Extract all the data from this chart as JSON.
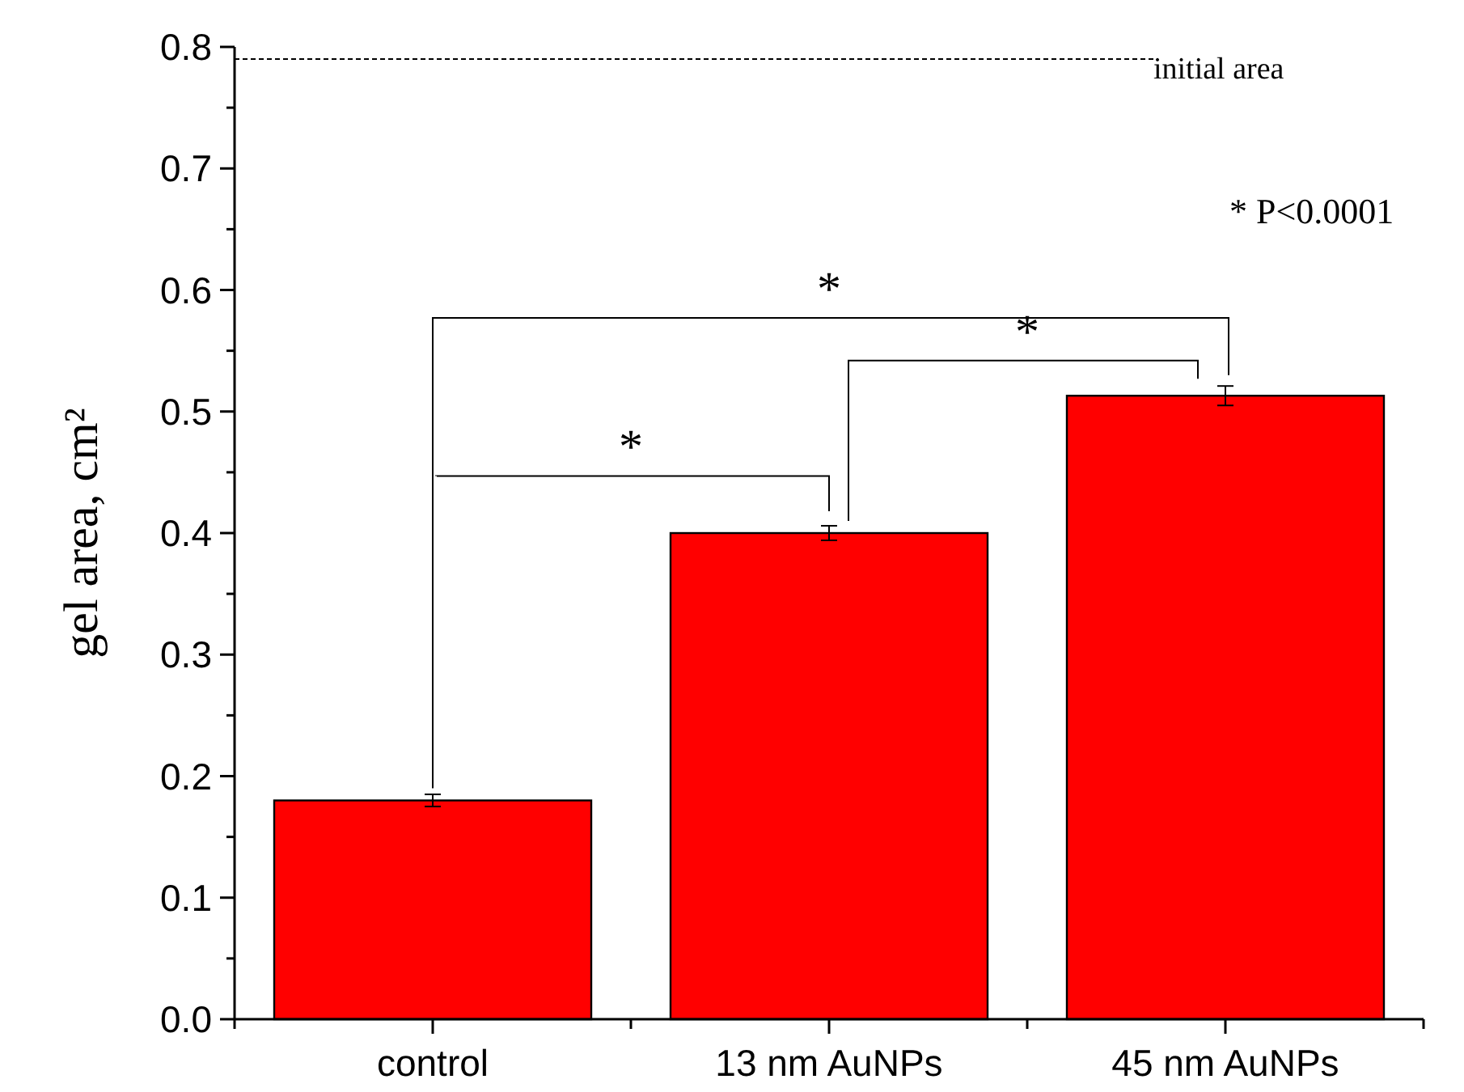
{
  "chart_data": {
    "type": "bar",
    "ylabel": "gel area, cm²",
    "categories": [
      "control",
      "13 nm AuNPs",
      "45 nm AuNPs"
    ],
    "values": [
      0.18,
      0.4,
      0.513
    ],
    "errors": [
      0.005,
      0.006,
      0.008
    ],
    "color": "#ff0000",
    "ylim": [
      0,
      0.8
    ],
    "yticks": [
      {
        "value": 0,
        "label": "0.0"
      },
      0.1,
      0.2,
      0.3,
      0.4,
      0.5,
      0.6,
      0.7,
      0.8
    ],
    "ref_lines": [
      {
        "axis": "y",
        "value": 0.79,
        "label": "initial area",
        "line_style": "dashed",
        "color": "#000000"
      }
    ],
    "annotations": [
      "*",
      "*",
      "*",
      "* P<0.0001"
    ]
  }
}
